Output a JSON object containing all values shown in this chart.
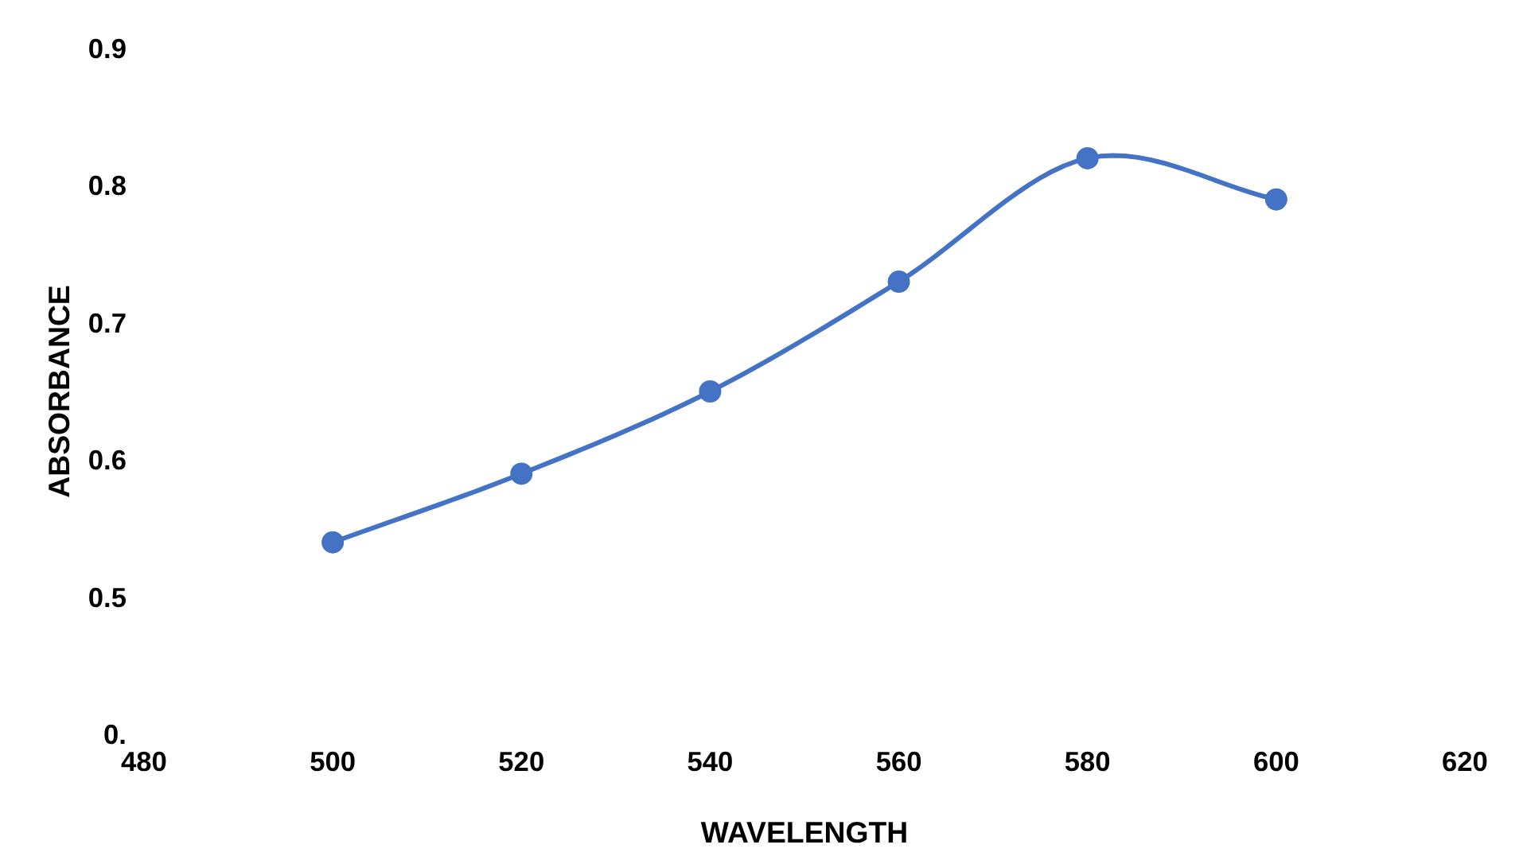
{
  "chart_data": {
    "type": "line",
    "xlabel": "WAVELENGTH",
    "ylabel": "ABSORBANCE",
    "x": [
      500,
      520,
      540,
      560,
      580,
      600
    ],
    "series": [
      {
        "color": "#4472c4",
        "values": [
          0.54,
          0.59,
          0.65,
          0.73,
          0.82,
          0.79
        ]
      }
    ],
    "xlim": [
      480,
      620
    ],
    "xticks": [
      480,
      500,
      520,
      540,
      560,
      580,
      600,
      620
    ],
    "ylim": [
      0.4,
      0.9
    ],
    "yticks": [
      {
        "value": 0.4,
        "label": "0."
      },
      0.5,
      0.6,
      0.7,
      0.8,
      0.9
    ],
    "grid": false,
    "marker": "circle",
    "line_style": "solid"
  }
}
